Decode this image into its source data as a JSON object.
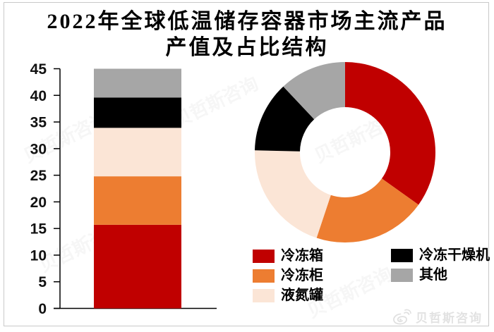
{
  "title": {
    "line1": "2022年全球低温储存容器市场主流产品",
    "line2": "产值及占比结构"
  },
  "chart_data": [
    {
      "type": "bar",
      "variant": "stacked-single-column",
      "categories": [
        ""
      ],
      "series": [
        {
          "name": "冷冻箱",
          "color": "#C00000",
          "values": [
            15.7
          ]
        },
        {
          "name": "冷冻柜",
          "color": "#ED7D31",
          "values": [
            9.1
          ]
        },
        {
          "name": "液氮罐",
          "color": "#FBE5D6",
          "values": [
            9.1
          ]
        },
        {
          "name": "冷冻干燥机",
          "color": "#000000",
          "values": [
            5.7
          ]
        },
        {
          "name": "其他",
          "color": "#A6A6A6",
          "values": [
            5.4
          ]
        }
      ],
      "ylim": [
        0,
        45
      ],
      "yticks": [
        0,
        5,
        10,
        15,
        20,
        25,
        30,
        35,
        40,
        45
      ],
      "grid": false,
      "axis_color": "#000000"
    },
    {
      "type": "pie",
      "variant": "donut",
      "labels": [
        "冷冻箱",
        "冷冻柜",
        "液氮罐",
        "冷冻干燥机",
        "其他"
      ],
      "values": [
        15.7,
        9.1,
        9.1,
        5.7,
        5.4
      ],
      "percentages": [
        34.9,
        20.2,
        20.2,
        12.7,
        12.0
      ],
      "colors": [
        "#C00000",
        "#ED7D31",
        "#FBE5D6",
        "#000000",
        "#A6A6A6"
      ],
      "start_angle_deg": 0,
      "direction": "clockwise",
      "inner_radius_ratio": 0.5
    }
  ],
  "legend": {
    "position": "bottom-right, two columns",
    "items": [
      {
        "label": "冷冻箱",
        "color": "#C00000"
      },
      {
        "label": "冷冻柜",
        "color": "#ED7D31"
      },
      {
        "label": "液氮罐",
        "color": "#FBE5D6"
      },
      {
        "label": "冷冻干燥机",
        "color": "#000000"
      },
      {
        "label": "其他",
        "color": "#A6A6A6"
      }
    ]
  },
  "watermark": {
    "diagonal_text": "贝哲斯咨询",
    "corner_text": "贝哲斯咨询",
    "corner_icon": "weibo-icon",
    "color": "#e2e2e2"
  },
  "colors": {
    "frame": "#c9c9c9",
    "title_text": "#000000"
  }
}
